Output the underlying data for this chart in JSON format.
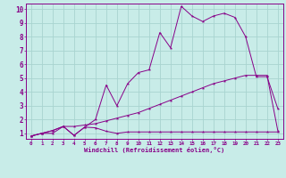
{
  "title": "",
  "xlabel": "Windchill (Refroidissement éolien,°C)",
  "background_color": "#c8ece8",
  "grid_color": "#a8d4d0",
  "line_color": "#880088",
  "xlim": [
    -0.5,
    23.5
  ],
  "ylim": [
    0.6,
    10.4
  ],
  "yticks": [
    1,
    2,
    3,
    4,
    5,
    6,
    7,
    8,
    9,
    10
  ],
  "xticks": [
    0,
    1,
    2,
    3,
    4,
    5,
    6,
    7,
    8,
    9,
    10,
    11,
    12,
    13,
    14,
    15,
    16,
    17,
    18,
    19,
    20,
    21,
    22,
    23
  ],
  "series1_x": [
    0,
    1,
    2,
    3,
    4,
    5,
    6,
    7,
    8,
    9,
    10,
    11,
    12,
    13,
    14,
    15,
    16,
    17,
    18,
    19,
    20,
    21,
    22,
    23
  ],
  "series1_y": [
    0.8,
    1.0,
    1.0,
    1.5,
    0.85,
    1.45,
    1.4,
    1.15,
    1.0,
    1.1,
    1.1,
    1.1,
    1.1,
    1.1,
    1.1,
    1.1,
    1.1,
    1.1,
    1.1,
    1.1,
    1.1,
    1.1,
    1.1,
    1.1
  ],
  "series2_x": [
    0,
    1,
    2,
    3,
    4,
    5,
    6,
    7,
    8,
    9,
    10,
    11,
    12,
    13,
    14,
    15,
    16,
    17,
    18,
    19,
    20,
    21,
    22,
    23
  ],
  "series2_y": [
    0.8,
    1.0,
    1.2,
    1.5,
    1.5,
    1.6,
    1.7,
    1.9,
    2.1,
    2.3,
    2.5,
    2.8,
    3.1,
    3.4,
    3.7,
    4.0,
    4.3,
    4.6,
    4.8,
    5.0,
    5.2,
    5.2,
    5.2,
    1.2
  ],
  "series3_x": [
    0,
    1,
    2,
    3,
    4,
    5,
    6,
    7,
    8,
    9,
    10,
    11,
    12,
    13,
    14,
    15,
    16,
    17,
    18,
    19,
    20,
    21,
    22,
    23
  ],
  "series3_y": [
    0.8,
    1.0,
    1.2,
    1.5,
    0.85,
    1.45,
    2.0,
    4.5,
    3.0,
    4.6,
    5.4,
    5.6,
    8.3,
    7.2,
    10.2,
    9.5,
    9.1,
    9.5,
    9.7,
    9.4,
    8.0,
    5.1,
    5.1,
    2.8
  ]
}
